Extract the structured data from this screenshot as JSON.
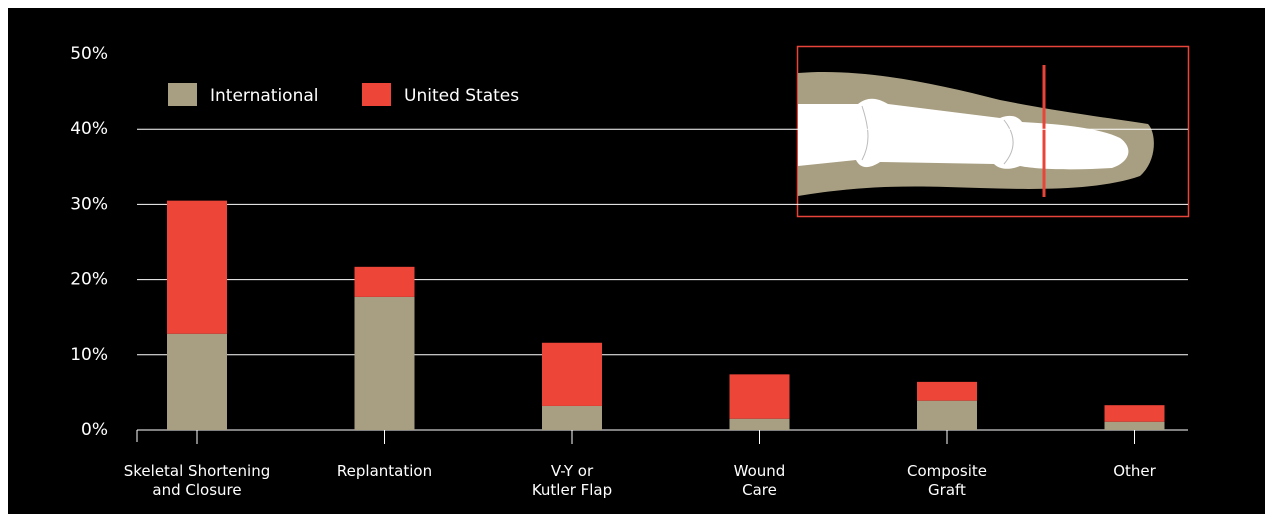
{
  "chart_data": {
    "type": "stacked_bar",
    "categories": [
      "Skeletal Shortening\nand Closure",
      "Replantation",
      "V-Y or\nKutler Flap",
      "Wound\nCare",
      "Composite\nGraft",
      "Other"
    ],
    "series": [
      {
        "name": "International",
        "color": "#a89f82",
        "values": [
          12.8,
          17.7,
          3.2,
          1.5,
          3.9,
          1.1
        ]
      },
      {
        "name": "United States",
        "color": "#ee4539",
        "values": [
          17.7,
          4.0,
          8.4,
          5.9,
          2.5,
          2.2
        ]
      }
    ],
    "ylim": [
      0,
      50
    ],
    "yticks": [
      {
        "value": 0,
        "label": "0%"
      },
      {
        "value": 10,
        "label": "10%"
      },
      {
        "value": 20,
        "label": "20%"
      },
      {
        "value": 30,
        "label": "30%"
      },
      {
        "value": 40,
        "label": "40%"
      },
      {
        "value": 50,
        "label": "50%"
      }
    ],
    "grid": true
  }
}
